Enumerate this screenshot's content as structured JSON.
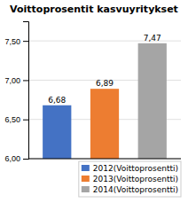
{
  "chart_data": {
    "type": "bar",
    "title": "Voittoprosentit kasvuyritykset",
    "categories": [
      "2012(Voittoprosentti)",
      "2013(Voittoprosentti)",
      "2014(Voittoprosentti)"
    ],
    "values": [
      6.68,
      6.89,
      7.47
    ],
    "value_labels": [
      "6,68",
      "6,89",
      "7,47"
    ],
    "data_labels": true,
    "colors": [
      "#4472c4",
      "#ed7d31",
      "#a5a5a5"
    ],
    "ylim": [
      6.0,
      7.75
    ],
    "yticks": [
      {
        "value": 6.0,
        "label": "6,00"
      },
      {
        "value": 6.5,
        "label": "6,50"
      },
      {
        "value": 7.0,
        "label": "7,00"
      },
      {
        "value": 7.5,
        "label": "7,50"
      }
    ],
    "grid": true,
    "legend": "lower right",
    "tick_labels": "y"
  }
}
